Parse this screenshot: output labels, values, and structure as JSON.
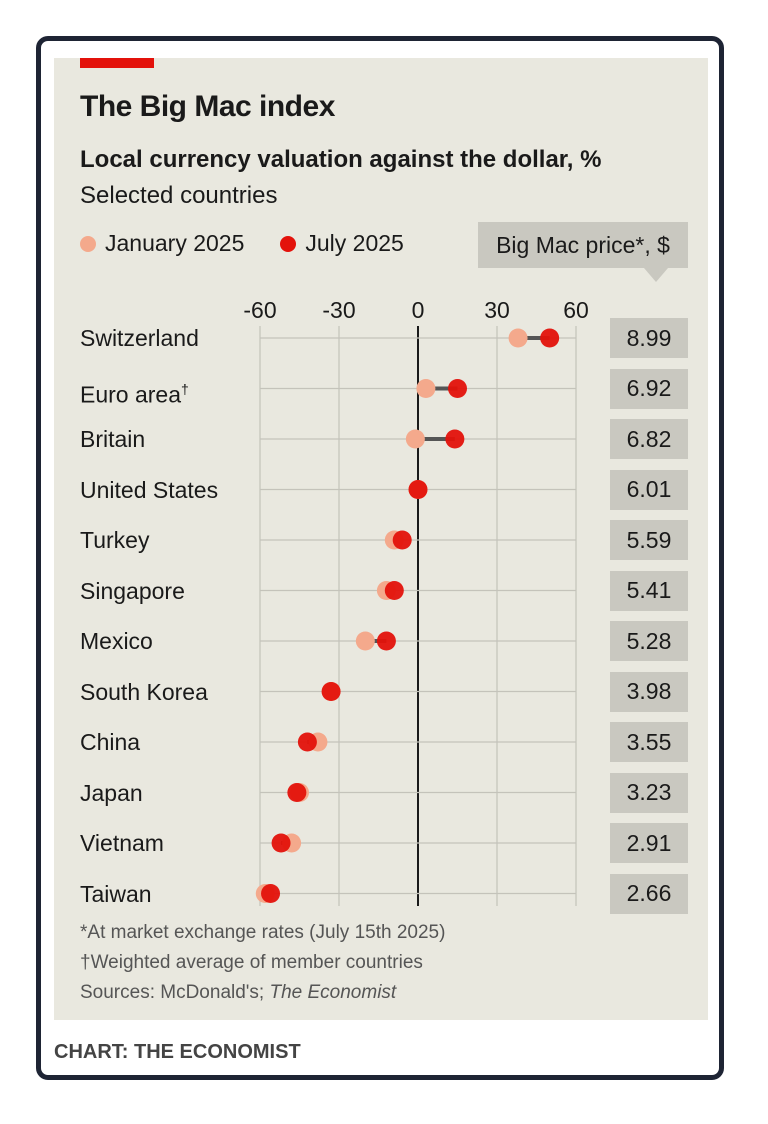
{
  "title": "The Big Mac index",
  "subtitle": "Local currency valuation against the dollar, %",
  "subsubtitle": "Selected countries",
  "legend": [
    {
      "label": "January 2025",
      "color": "#f4a98c"
    },
    {
      "label": "July 2025",
      "color": "#e3120b"
    }
  ],
  "price_header": "Big Mac price*, $",
  "footnotes": {
    "star": "*At market exchange rates (July 15th 2025)",
    "dagger": "†Weighted average of member countries",
    "sources_prefix": "Sources: McDonald's; ",
    "sources_italic": "The Economist"
  },
  "credit": "CHART: THE ECONOMIST",
  "colors": {
    "accent": "#e3120b",
    "january": "#f4a98c",
    "july": "#e3120b",
    "panel": "#e9e8df",
    "price_box": "#c9c8c0"
  },
  "chart_data": {
    "type": "scatter",
    "xlim": [
      -60,
      60
    ],
    "x_ticks": [
      "-60",
      "-30",
      "0",
      "30",
      "60"
    ],
    "grid": true,
    "categories": [
      "Switzerland",
      "Euro area",
      "Britain",
      "United States",
      "Turkey",
      "Singapore",
      "Mexico",
      "South Korea",
      "China",
      "Japan",
      "Vietnam",
      "Taiwan"
    ],
    "category_marks": [
      "",
      "†",
      "",
      "",
      "",
      "",
      "",
      "",
      "",
      "",
      "",
      ""
    ],
    "series": [
      {
        "name": "January 2025",
        "values": [
          38,
          3,
          -1,
          0,
          -9,
          -12,
          -20,
          -33,
          -38,
          -45,
          -48,
          -58
        ]
      },
      {
        "name": "July 2025",
        "values": [
          50,
          15,
          14,
          0,
          -6,
          -9,
          -12,
          -33,
          -42,
          -46,
          -52,
          -56
        ]
      }
    ],
    "big_mac_price": [
      "8.99",
      "6.92",
      "6.82",
      "6.01",
      "5.59",
      "5.41",
      "5.28",
      "3.98",
      "3.55",
      "3.23",
      "2.91",
      "2.66"
    ]
  }
}
